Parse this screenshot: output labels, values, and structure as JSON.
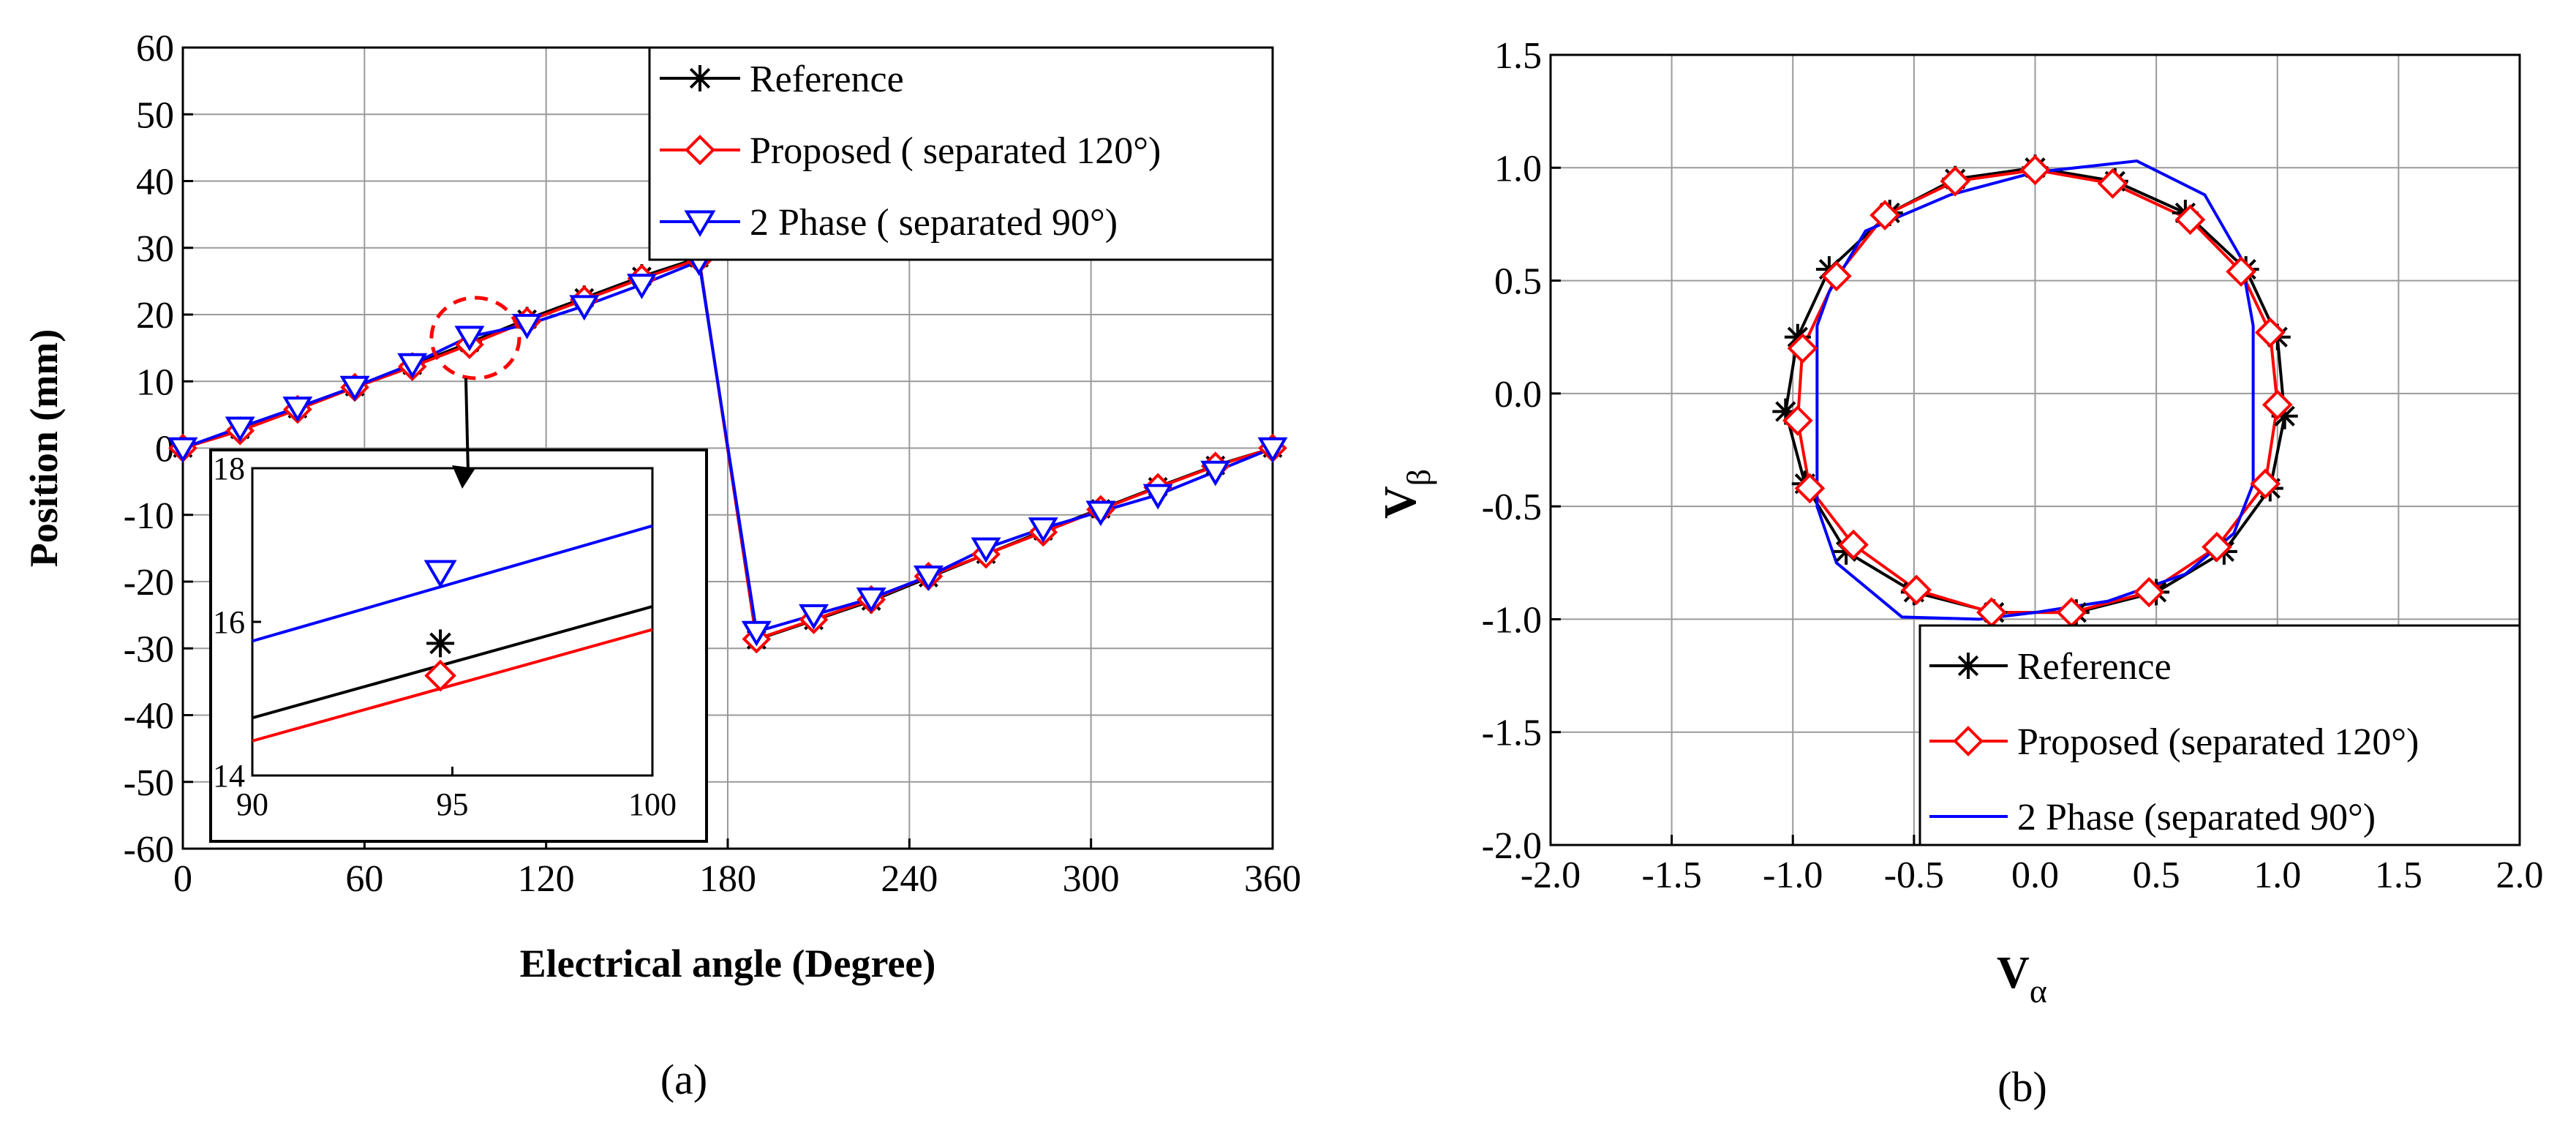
{
  "chart_data": [
    {
      "type": "line",
      "panel_label": "(a)",
      "xlabel": "Electrical angle (Degree)",
      "ylabel": "Position (mm)",
      "xlim": [
        0,
        360
      ],
      "ylim": [
        -60,
        60
      ],
      "xticks": [
        0,
        60,
        120,
        180,
        240,
        300,
        360
      ],
      "xtick_labels": [
        "0",
        "60",
        "120",
        "180",
        "240",
        "300",
        "360"
      ],
      "yticks": [
        60,
        50,
        40,
        30,
        20,
        10,
        0,
        -10,
        -20,
        -30,
        -40,
        -50,
        -60
      ],
      "ytick_labels": [
        "60",
        "50",
        "40",
        "30",
        "20",
        "10",
        "0",
        "-10",
        "-20",
        "-30",
        "-40",
        "-50",
        "-60"
      ],
      "grid": true,
      "legend_position": "top-right",
      "series": [
        {
          "name": "Reference",
          "color": "#000000",
          "marker": "asterisk",
          "points": [
            [
              0,
              0
            ],
            [
              18.9,
              2.8
            ],
            [
              37.9,
              5.9
            ],
            [
              56.8,
              9.2
            ],
            [
              75.8,
              12.4
            ],
            [
              94.7,
              15.8
            ],
            [
              113.7,
              19.3
            ],
            [
              132.6,
              22.5
            ],
            [
              151.6,
              25.7
            ],
            [
              170.5,
              28.5
            ],
            [
              189.5,
              -28.7
            ],
            [
              208.4,
              -25.8
            ],
            [
              227.4,
              -22.9
            ],
            [
              246.3,
              -19.4
            ],
            [
              265.3,
              -15.9
            ],
            [
              284.2,
              -12.4
            ],
            [
              303.2,
              -9.1
            ],
            [
              322.1,
              -5.8
            ],
            [
              341.1,
              -2.6
            ],
            [
              360,
              0
            ]
          ]
        },
        {
          "name": "Proposed ( separated 120°)",
          "color": "#ff0000",
          "marker": "diamond",
          "points": [
            [
              0,
              0
            ],
            [
              18.9,
              2.6
            ],
            [
              37.9,
              5.8
            ],
            [
              56.8,
              9.1
            ],
            [
              75.8,
              12.2
            ],
            [
              94.7,
              15.5
            ],
            [
              113.7,
              19
            ],
            [
              132.6,
              22.2
            ],
            [
              151.6,
              25.4
            ],
            [
              170.5,
              28.3
            ],
            [
              189.5,
              -28.6
            ],
            [
              208.4,
              -25.7
            ],
            [
              227.4,
              -22.7
            ],
            [
              246.3,
              -19.2
            ],
            [
              265.3,
              -15.9
            ],
            [
              284.2,
              -12.6
            ],
            [
              303.2,
              -9.2
            ],
            [
              322.1,
              -5.9
            ],
            [
              341.1,
              -2.7
            ],
            [
              360,
              0
            ]
          ]
        },
        {
          "name": "2 Phase ( separated 90°)",
          "color": "#0000ff",
          "marker": "triangle-down",
          "points": [
            [
              0,
              0
            ],
            [
              18.9,
              3.1
            ],
            [
              37.9,
              6.1
            ],
            [
              56.8,
              9.2
            ],
            [
              75.8,
              12.6
            ],
            [
              94.7,
              16.7
            ],
            [
              113.7,
              18.5
            ],
            [
              132.6,
              21.3
            ],
            [
              151.6,
              24.5
            ],
            [
              170.5,
              28
            ],
            [
              189.5,
              -27.5
            ],
            [
              208.4,
              -25
            ],
            [
              227.4,
              -22.5
            ],
            [
              246.3,
              -19.2
            ],
            [
              265.3,
              -15
            ],
            [
              284.2,
              -12
            ],
            [
              303.2,
              -9.5
            ],
            [
              322.1,
              -7
            ],
            [
              341.1,
              -3.5
            ],
            [
              360,
              0
            ]
          ]
        }
      ],
      "inset": {
        "xlim": [
          90,
          100
        ],
        "ylim": [
          14,
          18
        ],
        "xticks": [
          90,
          95,
          100
        ],
        "xtick_labels": [
          "90",
          "95",
          "100"
        ],
        "yticks": [
          18,
          16,
          14
        ],
        "ytick_labels": [
          "18",
          "16",
          "14"
        ],
        "zoom_center": [
          94.7,
          16.5
        ],
        "series": [
          {
            "name": "Reference",
            "color": "#000000",
            "points": [
              [
                90,
                14.75
              ],
              [
                100,
                16.2
              ]
            ],
            "marker_at": [
              94.7,
              15.72
            ]
          },
          {
            "name": "Proposed ( separated 120°)",
            "color": "#ff0000",
            "points": [
              [
                90,
                14.45
              ],
              [
                100,
                15.9
              ]
            ],
            "marker_at": [
              94.7,
              15.3
            ]
          },
          {
            "name": "2 Phase ( separated 90°)",
            "color": "#0000ff",
            "points": [
              [
                90,
                15.75
              ],
              [
                100,
                17.25
              ]
            ],
            "marker_at": [
              94.7,
              16.65
            ]
          }
        ]
      }
    },
    {
      "type": "line",
      "panel_label": "(b)",
      "xlabel_main": "V",
      "xlabel_sub": "α",
      "ylabel_main": "V",
      "ylabel_sub": "β",
      "xlim": [
        -2,
        2
      ],
      "ylim": [
        -2,
        1.5
      ],
      "xticks": [
        -2,
        -1.5,
        -1,
        -0.5,
        0,
        0.5,
        1,
        1.5,
        2
      ],
      "xtick_labels": [
        "-2.0",
        "-1.5",
        "-1.0",
        "-0.5",
        "0.0",
        "0.5",
        "1.0",
        "1.5",
        "2.0"
      ],
      "yticks": [
        1.5,
        1,
        0.5,
        0,
        -0.5,
        -1,
        -1.5,
        -2
      ],
      "ytick_labels": [
        "1.5",
        "1.0",
        "0.5",
        "0.0",
        "-0.5",
        "-1.0",
        "-1.5",
        "-2.0"
      ],
      "grid": true,
      "legend_position": "bottom-right",
      "series": [
        {
          "name": "Reference",
          "color": "#000000",
          "marker": "asterisk",
          "points": [
            [
              0,
              1
            ],
            [
              0.33,
              0.94
            ],
            [
              0.62,
              0.8
            ],
            [
              0.87,
              0.55
            ],
            [
              1,
              0.25
            ],
            [
              1.03,
              -0.1
            ],
            [
              0.97,
              -0.42
            ],
            [
              0.78,
              -0.7
            ],
            [
              0.5,
              -0.88
            ],
            [
              0.17,
              -0.97
            ],
            [
              -0.17,
              -0.97
            ],
            [
              -0.5,
              -0.88
            ],
            [
              -0.78,
              -0.7
            ],
            [
              -0.95,
              -0.4
            ],
            [
              -1.03,
              -0.08
            ],
            [
              -0.98,
              0.25
            ],
            [
              -0.85,
              0.55
            ],
            [
              -0.6,
              0.8
            ],
            [
              -0.33,
              0.95
            ],
            [
              0,
              1
            ]
          ]
        },
        {
          "name": "Proposed (separated 120°)",
          "color": "#ff0000",
          "marker": "diamond",
          "points": [
            [
              0,
              0.99
            ],
            [
              0.32,
              0.93
            ],
            [
              0.64,
              0.77
            ],
            [
              0.85,
              0.54
            ],
            [
              0.97,
              0.27
            ],
            [
              1,
              -0.05
            ],
            [
              0.95,
              -0.4
            ],
            [
              0.75,
              -0.68
            ],
            [
              0.47,
              -0.88
            ],
            [
              0.15,
              -0.97
            ],
            [
              -0.18,
              -0.97
            ],
            [
              -0.49,
              -0.87
            ],
            [
              -0.75,
              -0.67
            ],
            [
              -0.93,
              -0.42
            ],
            [
              -0.98,
              -0.12
            ],
            [
              -0.96,
              0.2
            ],
            [
              -0.82,
              0.52
            ],
            [
              -0.62,
              0.79
            ],
            [
              -0.33,
              0.94
            ],
            [
              0,
              0.99
            ]
          ]
        },
        {
          "name": "2 Phase (separated 90°)",
          "color": "#0000ff",
          "marker": "none",
          "points": [
            [
              0,
              0.98
            ],
            [
              0.42,
              1.03
            ],
            [
              0.7,
              0.88
            ],
            [
              0.85,
              0.6
            ],
            [
              0.9,
              0.3
            ],
            [
              0.9,
              -0.4
            ],
            [
              0.82,
              -0.62
            ],
            [
              0.62,
              -0.8
            ],
            [
              0.3,
              -0.92
            ],
            [
              0,
              -0.97
            ],
            [
              -0.23,
              -1
            ],
            [
              -0.55,
              -0.99
            ],
            [
              -0.82,
              -0.75
            ],
            [
              -0.9,
              -0.5
            ],
            [
              -0.9,
              0.3
            ],
            [
              -0.85,
              0.45
            ],
            [
              -0.7,
              0.72
            ],
            [
              -0.35,
              0.88
            ],
            [
              0,
              0.98
            ]
          ]
        }
      ]
    }
  ]
}
